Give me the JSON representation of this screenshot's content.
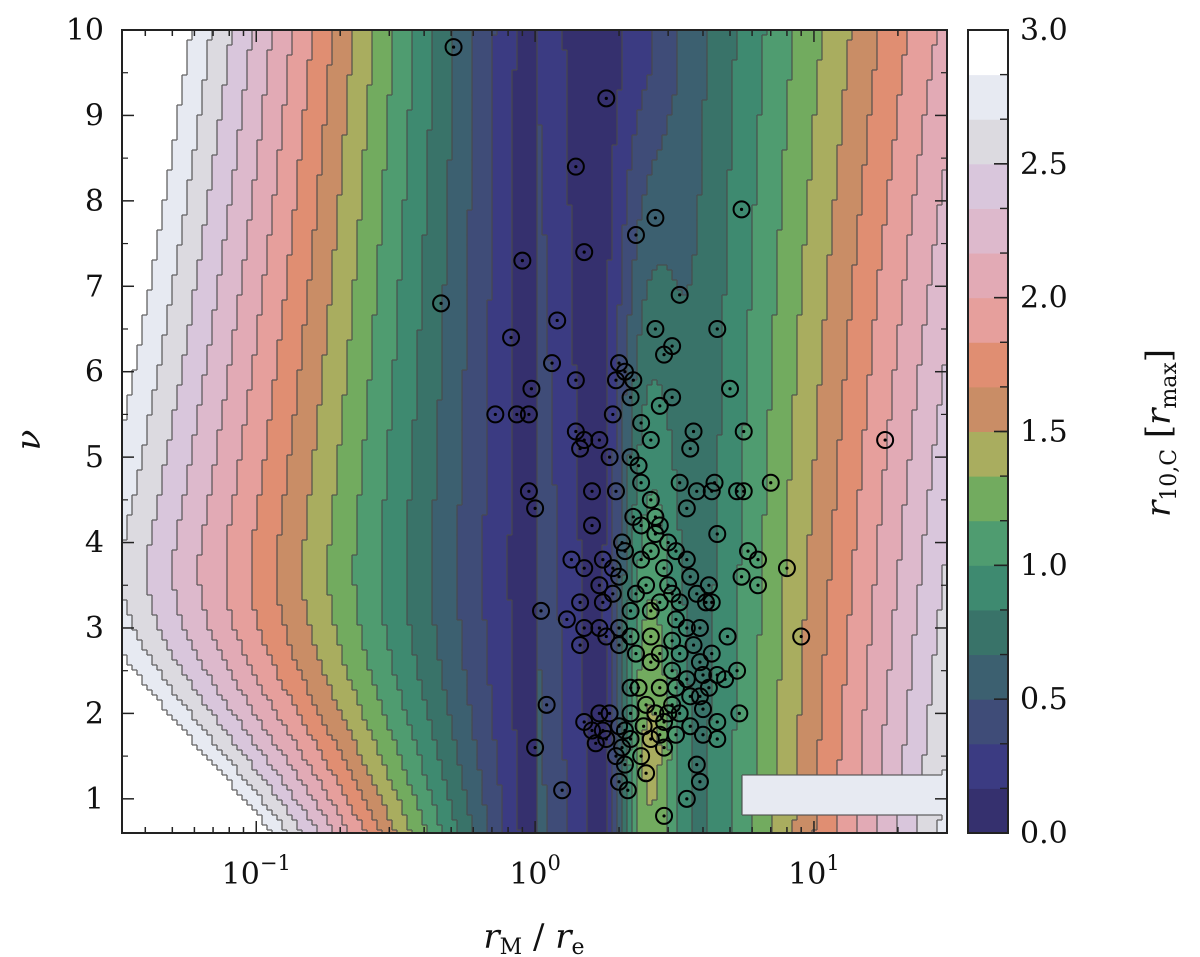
{
  "chart_data": {
    "type": "contour_scatter",
    "title": "",
    "xlabel": "rM / re",
    "xlabel_parts": {
      "main": "r",
      "sub_main": "M",
      "sep": " / ",
      "denom": "r",
      "sub_denom": "e"
    },
    "ylabel": "ν",
    "colorbar_label": "r10,C [rmax]",
    "colorbar_label_parts": {
      "main": "r",
      "sub": "10,C",
      "bracket_main": "r",
      "bracket_sub": "max"
    },
    "x_scale": "log",
    "xlim": [
      0.033,
      30
    ],
    "ylim": [
      0.6,
      10
    ],
    "x_ticks": [
      {
        "value": 0.1,
        "base": "10",
        "exp": "−1"
      },
      {
        "value": 1,
        "base": "10",
        "exp": "0"
      },
      {
        "value": 10,
        "base": "10",
        "exp": "1"
      }
    ],
    "y_ticks": [
      1,
      2,
      3,
      4,
      5,
      6,
      7,
      8,
      9,
      10
    ],
    "colorbar": {
      "range": [
        0,
        3
      ],
      "levels": 18,
      "tick_labels": [
        "0.0",
        "0.5",
        "1.0",
        "1.5",
        "2.0",
        "2.5",
        "3.0"
      ],
      "colors": [
        "#35306e",
        "#3b3b82",
        "#3f4c78",
        "#3c6070",
        "#397369",
        "#3e8a70",
        "#4f9c70",
        "#72ab5f",
        "#a9ad5f",
        "#c98d66",
        "#e08e72",
        "#e69f9c",
        "#e2aab5",
        "#ddb9cc",
        "#d9c6dc",
        "#dcdae0",
        "#e7eaf2",
        "#ffffff"
      ]
    },
    "contour_field": "radius depends on nu and log10(rM/re); minimum near rM/re ~ 1, increasing away from it",
    "scatter_points": [
      [
        0.51,
        9.8
      ],
      [
        1.8,
        9.2
      ],
      [
        1.4,
        8.4
      ],
      [
        5.5,
        7.9
      ],
      [
        2.7,
        7.8
      ],
      [
        2.3,
        7.6
      ],
      [
        1.5,
        7.4
      ],
      [
        0.9,
        7.3
      ],
      [
        3.3,
        6.9
      ],
      [
        0.46,
        6.8
      ],
      [
        1.2,
        6.6
      ],
      [
        2.7,
        6.5
      ],
      [
        4.5,
        6.5
      ],
      [
        0.82,
        6.4
      ],
      [
        3.1,
        6.3
      ],
      [
        2.9,
        6.2
      ],
      [
        1.15,
        6.1
      ],
      [
        2.0,
        6.1
      ],
      [
        2.1,
        6.0
      ],
      [
        2.25,
        5.9
      ],
      [
        1.4,
        5.9
      ],
      [
        1.95,
        5.9
      ],
      [
        0.97,
        5.8
      ],
      [
        5.0,
        5.8
      ],
      [
        3.1,
        5.7
      ],
      [
        2.2,
        5.7
      ],
      [
        2.8,
        5.6
      ],
      [
        0.72,
        5.5
      ],
      [
        0.86,
        5.5
      ],
      [
        0.95,
        5.5
      ],
      [
        1.9,
        5.5
      ],
      [
        2.4,
        5.4
      ],
      [
        1.4,
        5.3
      ],
      [
        3.7,
        5.3
      ],
      [
        5.6,
        5.3
      ],
      [
        1.5,
        5.2
      ],
      [
        1.7,
        5.2
      ],
      [
        1.45,
        5.1
      ],
      [
        2.6,
        5.2
      ],
      [
        1.85,
        5.0
      ],
      [
        2.2,
        5.0
      ],
      [
        2.35,
        4.9
      ],
      [
        3.6,
        5.1
      ],
      [
        18.0,
        5.2
      ],
      [
        3.3,
        4.7
      ],
      [
        2.4,
        4.7
      ],
      [
        3.8,
        4.6
      ],
      [
        4.3,
        4.6
      ],
      [
        0.95,
        4.6
      ],
      [
        1.6,
        4.6
      ],
      [
        1.95,
        4.6
      ],
      [
        2.6,
        4.5
      ],
      [
        4.4,
        4.7
      ],
      [
        5.3,
        4.6
      ],
      [
        5.6,
        4.6
      ],
      [
        7.0,
        4.7
      ],
      [
        3.5,
        4.4
      ],
      [
        2.7,
        4.3
      ],
      [
        2.25,
        4.3
      ],
      [
        2.8,
        4.2
      ],
      [
        1.0,
        4.4
      ],
      [
        1.6,
        4.2
      ],
      [
        2.4,
        4.2
      ],
      [
        2.7,
        4.1
      ],
      [
        4.5,
        4.1
      ],
      [
        3.0,
        4.0
      ],
      [
        2.05,
        4.0
      ],
      [
        2.6,
        3.9
      ],
      [
        1.35,
        3.8
      ],
      [
        2.4,
        3.8
      ],
      [
        3.2,
        3.9
      ],
      [
        2.1,
        3.9
      ],
      [
        1.75,
        3.8
      ],
      [
        1.9,
        3.7
      ],
      [
        1.5,
        3.7
      ],
      [
        3.5,
        3.8
      ],
      [
        5.8,
        3.9
      ],
      [
        6.3,
        3.8
      ],
      [
        2.9,
        3.7
      ],
      [
        8.0,
        3.7
      ],
      [
        5.5,
        3.6
      ],
      [
        2.0,
        3.6
      ],
      [
        3.6,
        3.6
      ],
      [
        1.7,
        3.5
      ],
      [
        2.5,
        3.5
      ],
      [
        3.0,
        3.5
      ],
      [
        4.2,
        3.5
      ],
      [
        6.3,
        3.5
      ],
      [
        1.9,
        3.4
      ],
      [
        2.3,
        3.4
      ],
      [
        3.1,
        3.4
      ],
      [
        3.8,
        3.4
      ],
      [
        4.1,
        3.3
      ],
      [
        1.45,
        3.3
      ],
      [
        1.75,
        3.3
      ],
      [
        2.8,
        3.3
      ],
      [
        3.3,
        3.3
      ],
      [
        4.3,
        3.3
      ],
      [
        1.05,
        3.2
      ],
      [
        2.2,
        3.2
      ],
      [
        2.6,
        3.2
      ],
      [
        3.2,
        3.1
      ],
      [
        1.3,
        3.1
      ],
      [
        1.5,
        3.0
      ],
      [
        1.7,
        3.0
      ],
      [
        2.0,
        3.0
      ],
      [
        3.5,
        3.0
      ],
      [
        3.9,
        3.0
      ],
      [
        2.2,
        2.9
      ],
      [
        2.6,
        2.9
      ],
      [
        9.0,
        2.9
      ],
      [
        4.9,
        2.9
      ],
      [
        1.8,
        2.9
      ],
      [
        3.1,
        2.85
      ],
      [
        1.45,
        2.8
      ],
      [
        3.7,
        2.8
      ],
      [
        2.0,
        2.8
      ],
      [
        2.3,
        2.7
      ],
      [
        2.8,
        2.7
      ],
      [
        3.3,
        2.7
      ],
      [
        4.3,
        2.7
      ],
      [
        2.6,
        2.6
      ],
      [
        3.9,
        2.6
      ],
      [
        5.3,
        2.5
      ],
      [
        3.1,
        2.5
      ],
      [
        4.0,
        2.45
      ],
      [
        4.5,
        2.45
      ],
      [
        3.5,
        2.4
      ],
      [
        4.8,
        2.4
      ],
      [
        2.2,
        2.3
      ],
      [
        2.35,
        2.3
      ],
      [
        2.8,
        2.3
      ],
      [
        3.2,
        2.3
      ],
      [
        4.2,
        2.3
      ],
      [
        3.6,
        2.2
      ],
      [
        3.9,
        2.2
      ],
      [
        2.5,
        2.1
      ],
      [
        1.1,
        2.1
      ],
      [
        3.1,
        2.1
      ],
      [
        4.0,
        2.05
      ],
      [
        1.7,
        2.0
      ],
      [
        1.85,
        2.0
      ],
      [
        2.2,
        2.0
      ],
      [
        2.7,
        2.0
      ],
      [
        3.0,
        2.0
      ],
      [
        3.3,
        2.0
      ],
      [
        5.4,
        2.0
      ],
      [
        2.9,
        1.9
      ],
      [
        4.5,
        1.9
      ],
      [
        1.5,
        1.9
      ],
      [
        2.0,
        1.85
      ],
      [
        2.45,
        1.85
      ],
      [
        3.6,
        1.85
      ],
      [
        1.6,
        1.8
      ],
      [
        1.75,
        1.8
      ],
      [
        2.1,
        1.8
      ],
      [
        2.8,
        1.75
      ],
      [
        3.2,
        1.75
      ],
      [
        4.0,
        1.75
      ],
      [
        1.8,
        1.7
      ],
      [
        2.2,
        1.7
      ],
      [
        2.6,
        1.7
      ],
      [
        4.5,
        1.7
      ],
      [
        1.65,
        1.65
      ],
      [
        2.05,
        1.6
      ],
      [
        2.9,
        1.6
      ],
      [
        1.0,
        1.6
      ],
      [
        1.95,
        1.5
      ],
      [
        2.4,
        1.5
      ],
      [
        2.1,
        1.4
      ],
      [
        3.8,
        1.4
      ],
      [
        2.5,
        1.3
      ],
      [
        2.0,
        1.2
      ],
      [
        3.9,
        1.2
      ],
      [
        1.25,
        1.1
      ],
      [
        2.15,
        1.1
      ],
      [
        3.5,
        1.0
      ],
      [
        2.9,
        0.8
      ]
    ]
  }
}
